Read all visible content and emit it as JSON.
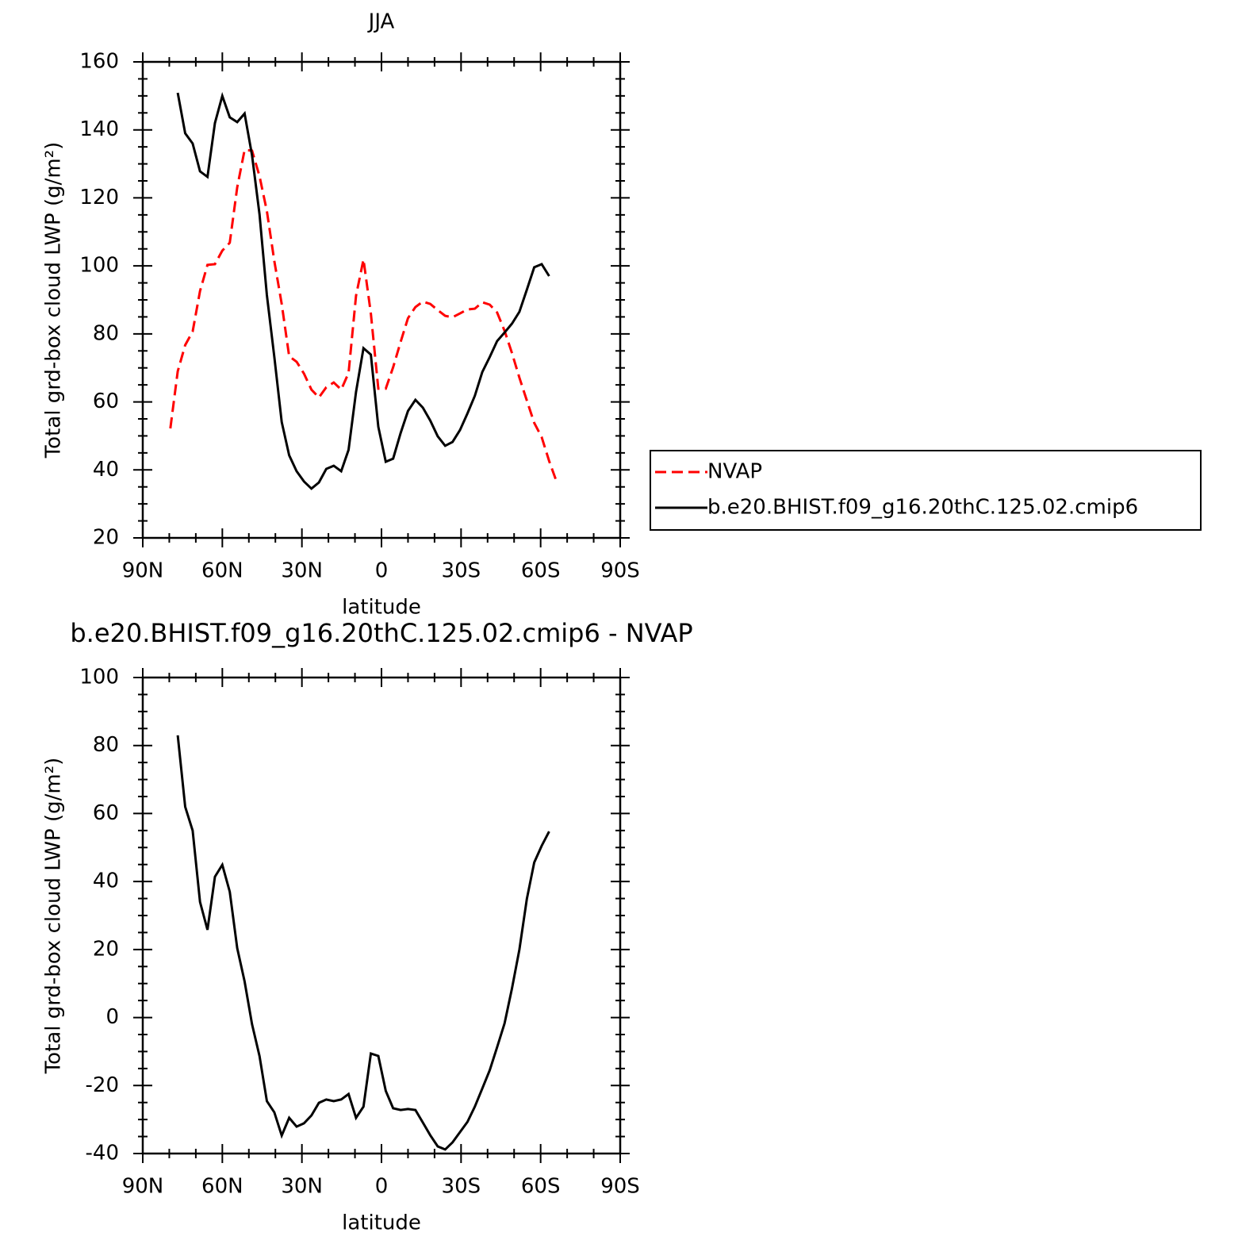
{
  "chart_data": [
    {
      "type": "line",
      "title": "JJA",
      "xlabel": "latitude",
      "ylabel": "Total grd-box cloud LWP (g/m²)",
      "x": [
        79.6,
        76.8,
        74.0,
        71.2,
        68.4,
        65.6,
        62.8,
        60.0,
        57.2,
        54.4,
        51.6,
        48.8,
        46.0,
        43.2,
        40.4,
        37.6,
        34.8,
        32.0,
        29.2,
        26.4,
        23.6,
        20.8,
        18.0,
        15.2,
        12.4,
        9.6,
        6.8,
        4.0,
        1.2,
        -1.6,
        -4.4,
        -7.2,
        -10.0,
        -12.8,
        -15.6,
        -18.4,
        -21.2,
        -24.0,
        -26.8,
        -29.6,
        -32.4,
        -35.2,
        -38.0,
        -40.8,
        -43.6,
        -46.4,
        -49.2,
        -52.0,
        -54.8,
        -57.6,
        -60.4,
        -63.2,
        -66.0
      ],
      "xlim": [
        90,
        -90
      ],
      "xticks": [
        {
          "value": 90,
          "label": "90N"
        },
        {
          "value": 60,
          "label": "60N"
        },
        {
          "value": 30,
          "label": "30N"
        },
        0,
        {
          "value": -30,
          "label": "30S"
        },
        {
          "value": -60,
          "label": "60S"
        },
        {
          "value": -90,
          "label": "90S"
        }
      ],
      "ylim": [
        20,
        160
      ],
      "yticks": [
        20,
        40,
        60,
        80,
        100,
        120,
        140,
        160
      ],
      "legend": "outside-right",
      "series": [
        {
          "name": "NVAP",
          "color": "#ff0000",
          "line_style": "dashed",
          "values": [
            52.2,
            69.0,
            76.7,
            80.7,
            92.6,
            100.3,
            100.5,
            104.5,
            106.8,
            123.1,
            134.1,
            133.9,
            126.4,
            116.1,
            101.4,
            88.8,
            73.4,
            71.8,
            68.3,
            63.6,
            61.3,
            64.3,
            65.7,
            63.6,
            68.5,
            91.2,
            101.9,
            86.0,
            63.9,
            63.9,
            70.2,
            77.6,
            84.6,
            87.9,
            89.5,
            88.8,
            87.0,
            85.3,
            84.9,
            86.0,
            87.2,
            87.4,
            89.3,
            88.6,
            86.3,
            80.9,
            74.4,
            67.1,
            60.4,
            53.8,
            49.6,
            42.6,
            36.6
          ]
        },
        {
          "name": "b.e20.BHIST.f09_g16.20thC.125.02.cmip6",
          "color": "#000000",
          "line_style": "solid",
          "values": [
            null,
            150.9,
            139.0,
            136.0,
            127.8,
            126.2,
            142.0,
            150.0,
            143.7,
            142.3,
            144.8,
            132.5,
            115.2,
            91.4,
            73.2,
            54.1,
            44.3,
            39.6,
            36.6,
            34.5,
            36.3,
            40.3,
            41.2,
            39.6,
            45.9,
            62.9,
            75.8,
            73.9,
            52.7,
            42.4,
            43.3,
            50.8,
            57.3,
            60.6,
            58.3,
            54.5,
            49.9,
            47.1,
            48.2,
            51.7,
            56.6,
            61.8,
            68.8,
            73.2,
            77.9,
            80.4,
            83.0,
            86.5,
            93.0,
            99.6,
            100.5,
            97.0,
            null
          ]
        }
      ]
    },
    {
      "type": "line",
      "title": "b.e20.BHIST.f09_g16.20thC.125.02.cmip6 - NVAP",
      "xlabel": "latitude",
      "ylabel": "Total grd-box cloud LWP (g/m²)",
      "x": [
        79.6,
        76.8,
        74.0,
        71.2,
        68.4,
        65.6,
        62.8,
        60.0,
        57.2,
        54.4,
        51.6,
        48.8,
        46.0,
        43.2,
        40.4,
        37.6,
        34.8,
        32.0,
        29.2,
        26.4,
        23.6,
        20.8,
        18.0,
        15.2,
        12.4,
        9.6,
        6.8,
        4.0,
        1.2,
        -1.6,
        -4.4,
        -7.2,
        -10.0,
        -12.8,
        -15.6,
        -18.4,
        -21.2,
        -24.0,
        -26.8,
        -29.6,
        -32.4,
        -35.2,
        -38.0,
        -40.8,
        -43.6,
        -46.4,
        -49.2,
        -52.0,
        -54.8,
        -57.6,
        -60.4,
        -63.2,
        -66.0
      ],
      "xlim": [
        90,
        -90
      ],
      "xticks": [
        {
          "value": 90,
          "label": "90N"
        },
        {
          "value": 60,
          "label": "60N"
        },
        {
          "value": 30,
          "label": "30N"
        },
        0,
        {
          "value": -30,
          "label": "30S"
        },
        {
          "value": -60,
          "label": "60S"
        },
        {
          "value": -90,
          "label": "90S"
        }
      ],
      "ylim": [
        -40,
        100
      ],
      "yticks": [
        -40,
        -20,
        0,
        20,
        40,
        60,
        80,
        100
      ],
      "series": [
        {
          "color": "#000000",
          "line_style": "solid",
          "values": [
            null,
            83.0,
            62.0,
            55.0,
            34.0,
            25.8,
            41.4,
            44.9,
            37.0,
            20.4,
            10.6,
            -2.0,
            -11.3,
            -24.6,
            -27.9,
            -34.7,
            -29.5,
            -32.1,
            -31.1,
            -28.8,
            -25.1,
            -24.1,
            -24.6,
            -24.1,
            -22.5,
            -29.5,
            -26.2,
            -10.6,
            -11.3,
            -21.6,
            -26.7,
            -27.2,
            -26.9,
            -27.2,
            -30.9,
            -34.6,
            -37.9,
            -38.8,
            -36.7,
            -33.7,
            -30.7,
            -26.2,
            -20.9,
            -15.5,
            -8.7,
            -1.7,
            8.5,
            20.0,
            34.9,
            45.6,
            50.5,
            54.7,
            null
          ]
        }
      ]
    }
  ]
}
